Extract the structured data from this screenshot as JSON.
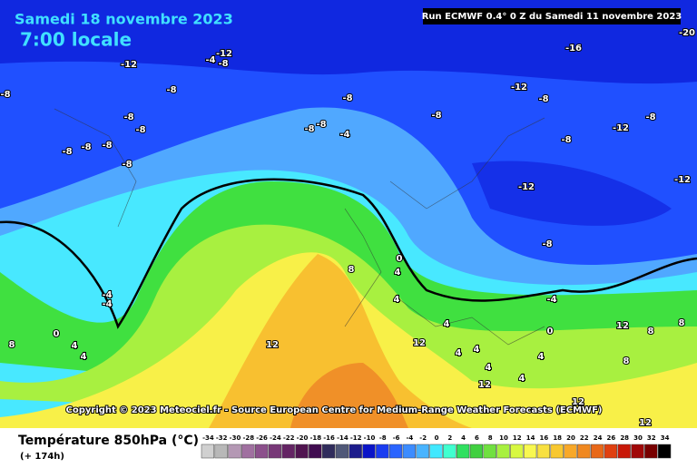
{
  "header": {
    "title": "Samedi 18 novembre 2023",
    "subtitle": "7:00 locale",
    "run": "Run ECMWF 0.4° 0 Z du Samedi 11 novembre 2023"
  },
  "map": {
    "contour_labels": [
      "-12",
      "-4",
      "-12",
      "-8",
      "-8",
      "-8",
      "-8",
      "-12",
      "-8",
      "-16",
      "-20",
      "-8",
      "-8",
      "-12",
      "-8",
      "-8",
      "-8",
      "-8",
      "-8",
      "-4",
      "-8",
      "-8",
      "-8",
      "-8",
      "-12",
      "-12",
      "-8",
      "-4",
      "-4",
      "0",
      "4",
      "8",
      "4",
      "0",
      "4",
      "4",
      "8",
      "12",
      "12",
      "4",
      "4",
      "4",
      "4",
      "-4",
      "0",
      "4",
      "12",
      "8",
      "8",
      "8",
      "12",
      "12",
      "12",
      "4"
    ]
  },
  "copyright": "Copyright © 2023 Meteociel.fr - Source European Centre for Medium-Range Weather Forecasts (ECMWF)",
  "legend": {
    "title": "Température 850hPa (°C)",
    "lead_time": "(+ 174h)",
    "ticks": [
      -34,
      -32,
      -30,
      -28,
      -26,
      -24,
      -22,
      -20,
      -18,
      -16,
      -14,
      -12,
      -10,
      -8,
      -6,
      -4,
      -2,
      0,
      2,
      4,
      6,
      8,
      10,
      12,
      14,
      16,
      18,
      20,
      22,
      24,
      26,
      28,
      30,
      32,
      34
    ],
    "colors": [
      "#d0d0d0",
      "#b8b8b8",
      "#b498b4",
      "#a070a0",
      "#8c508c",
      "#783878",
      "#642464",
      "#501450",
      "#400c50",
      "#302c5c",
      "#505878",
      "#1c1c8c",
      "#0a14c8",
      "#1a3cf0",
      "#2a64ff",
      "#3c8cff",
      "#48b4ff",
      "#40e8ff",
      "#40ffd0",
      "#30e060",
      "#40d040",
      "#70e040",
      "#a8f040",
      "#d8f840",
      "#f8f850",
      "#f8e040",
      "#f8c830",
      "#f8a828",
      "#f08820",
      "#e86818",
      "#e04010",
      "#c81808",
      "#a00808",
      "#780000",
      "#000000"
    ]
  }
}
